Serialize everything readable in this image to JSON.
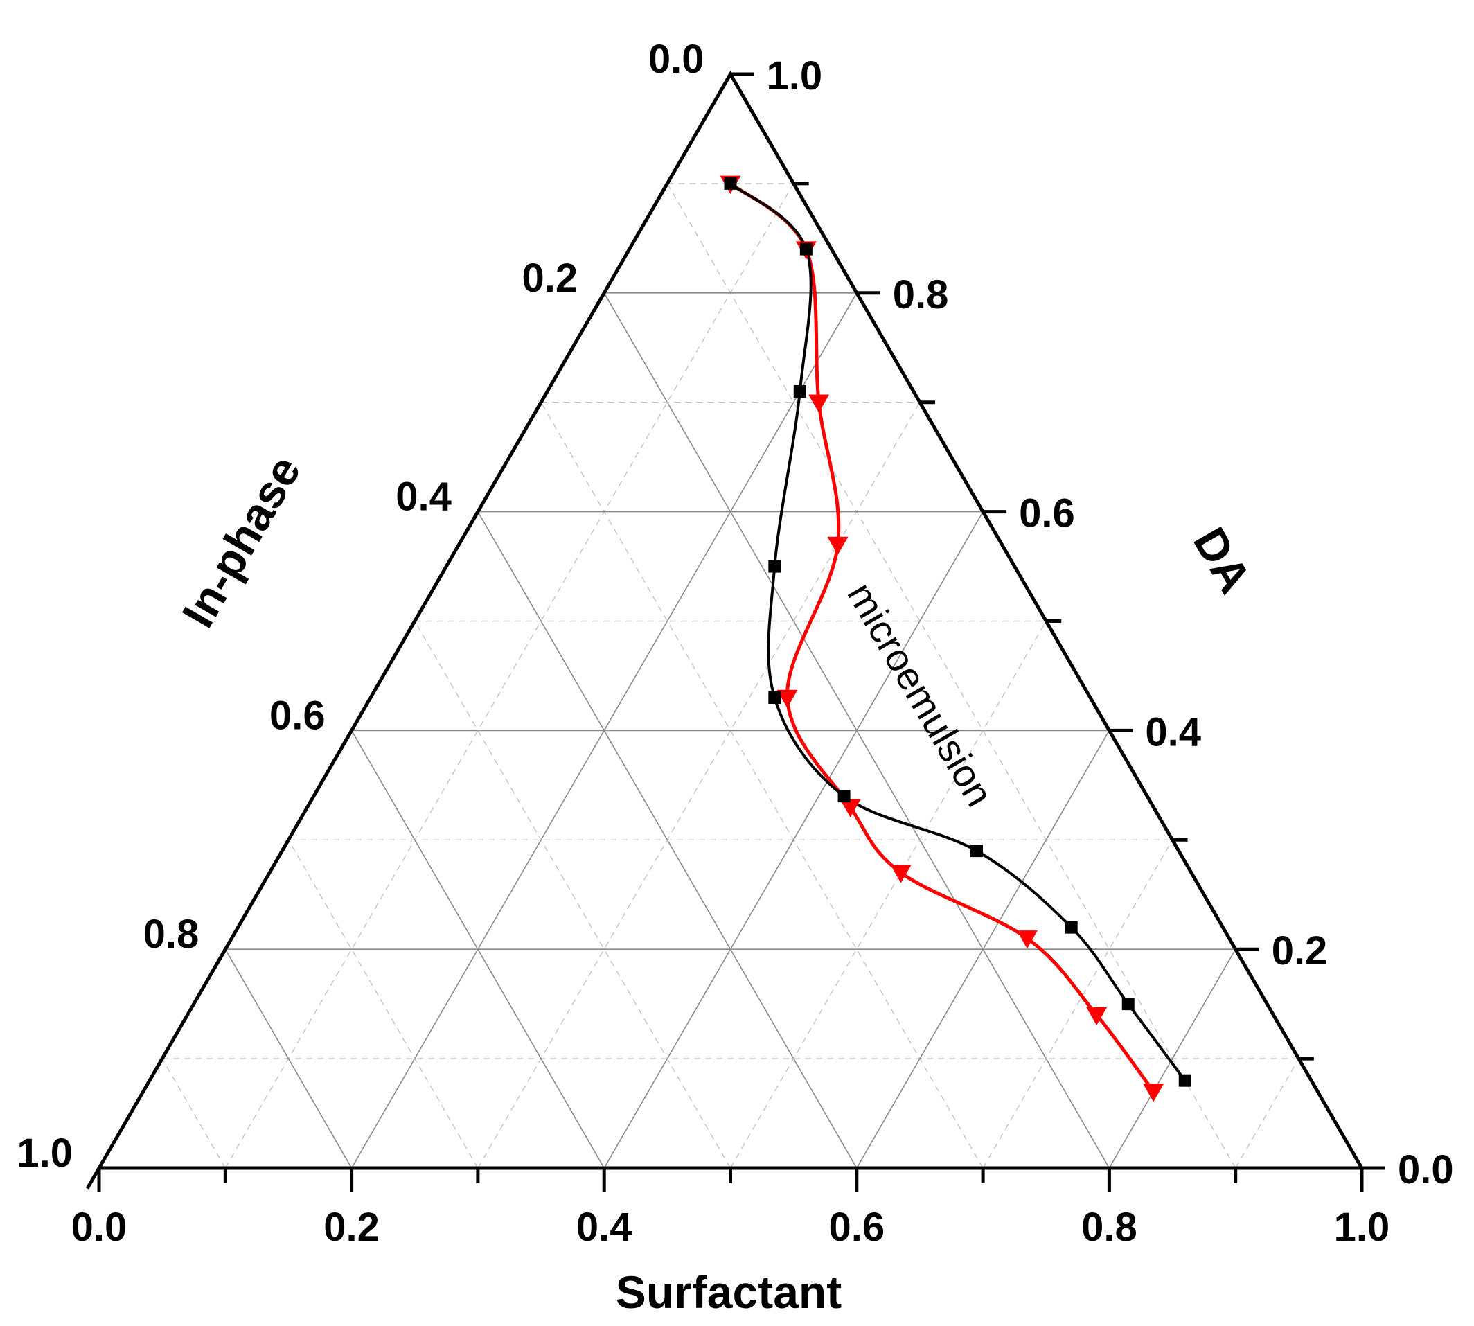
{
  "chart_data": {
    "type": "scatter",
    "subtype": "ternary",
    "axes": {
      "bottom": {
        "label": "Surfactant",
        "ticks": [
          "0.0",
          "0.2",
          "0.4",
          "0.6",
          "0.8",
          "1.0"
        ]
      },
      "left": {
        "label": "In-phase",
        "ticks": [
          "0.0",
          "0.2",
          "0.4",
          "0.6",
          "0.8",
          "1.0"
        ]
      },
      "right": {
        "label": "DA",
        "ticks": [
          "0.0",
          "0.2",
          "0.4",
          "0.6",
          "0.8",
          "1.0"
        ]
      }
    },
    "grid": true,
    "annotations": [
      "microemulsion"
    ],
    "series": [
      {
        "marker": "square",
        "color": "#000000",
        "points": [
          {
            "surfactant": 0.05,
            "da": 0.9
          },
          {
            "surfactant": 0.14,
            "da": 0.84
          },
          {
            "surfactant": 0.2,
            "da": 0.71
          },
          {
            "surfactant": 0.26,
            "da": 0.55
          },
          {
            "surfactant": 0.32,
            "da": 0.43
          },
          {
            "surfactant": 0.42,
            "da": 0.34
          },
          {
            "surfactant": 0.55,
            "da": 0.29
          },
          {
            "surfactant": 0.66,
            "da": 0.22
          },
          {
            "surfactant": 0.74,
            "da": 0.15
          },
          {
            "surfactant": 0.82,
            "da": 0.08
          }
        ]
      },
      {
        "marker": "triangle-down",
        "color": "#ff0000",
        "points": [
          {
            "surfactant": 0.05,
            "da": 0.9
          },
          {
            "surfactant": 0.14,
            "da": 0.84
          },
          {
            "surfactant": 0.22,
            "da": 0.7
          },
          {
            "surfactant": 0.3,
            "da": 0.57
          },
          {
            "surfactant": 0.33,
            "da": 0.43
          },
          {
            "surfactant": 0.43,
            "da": 0.33
          },
          {
            "surfactant": 0.5,
            "da": 0.27
          },
          {
            "surfactant": 0.63,
            "da": 0.21
          },
          {
            "surfactant": 0.72,
            "da": 0.14
          },
          {
            "surfactant": 0.8,
            "da": 0.07
          }
        ]
      }
    ]
  }
}
